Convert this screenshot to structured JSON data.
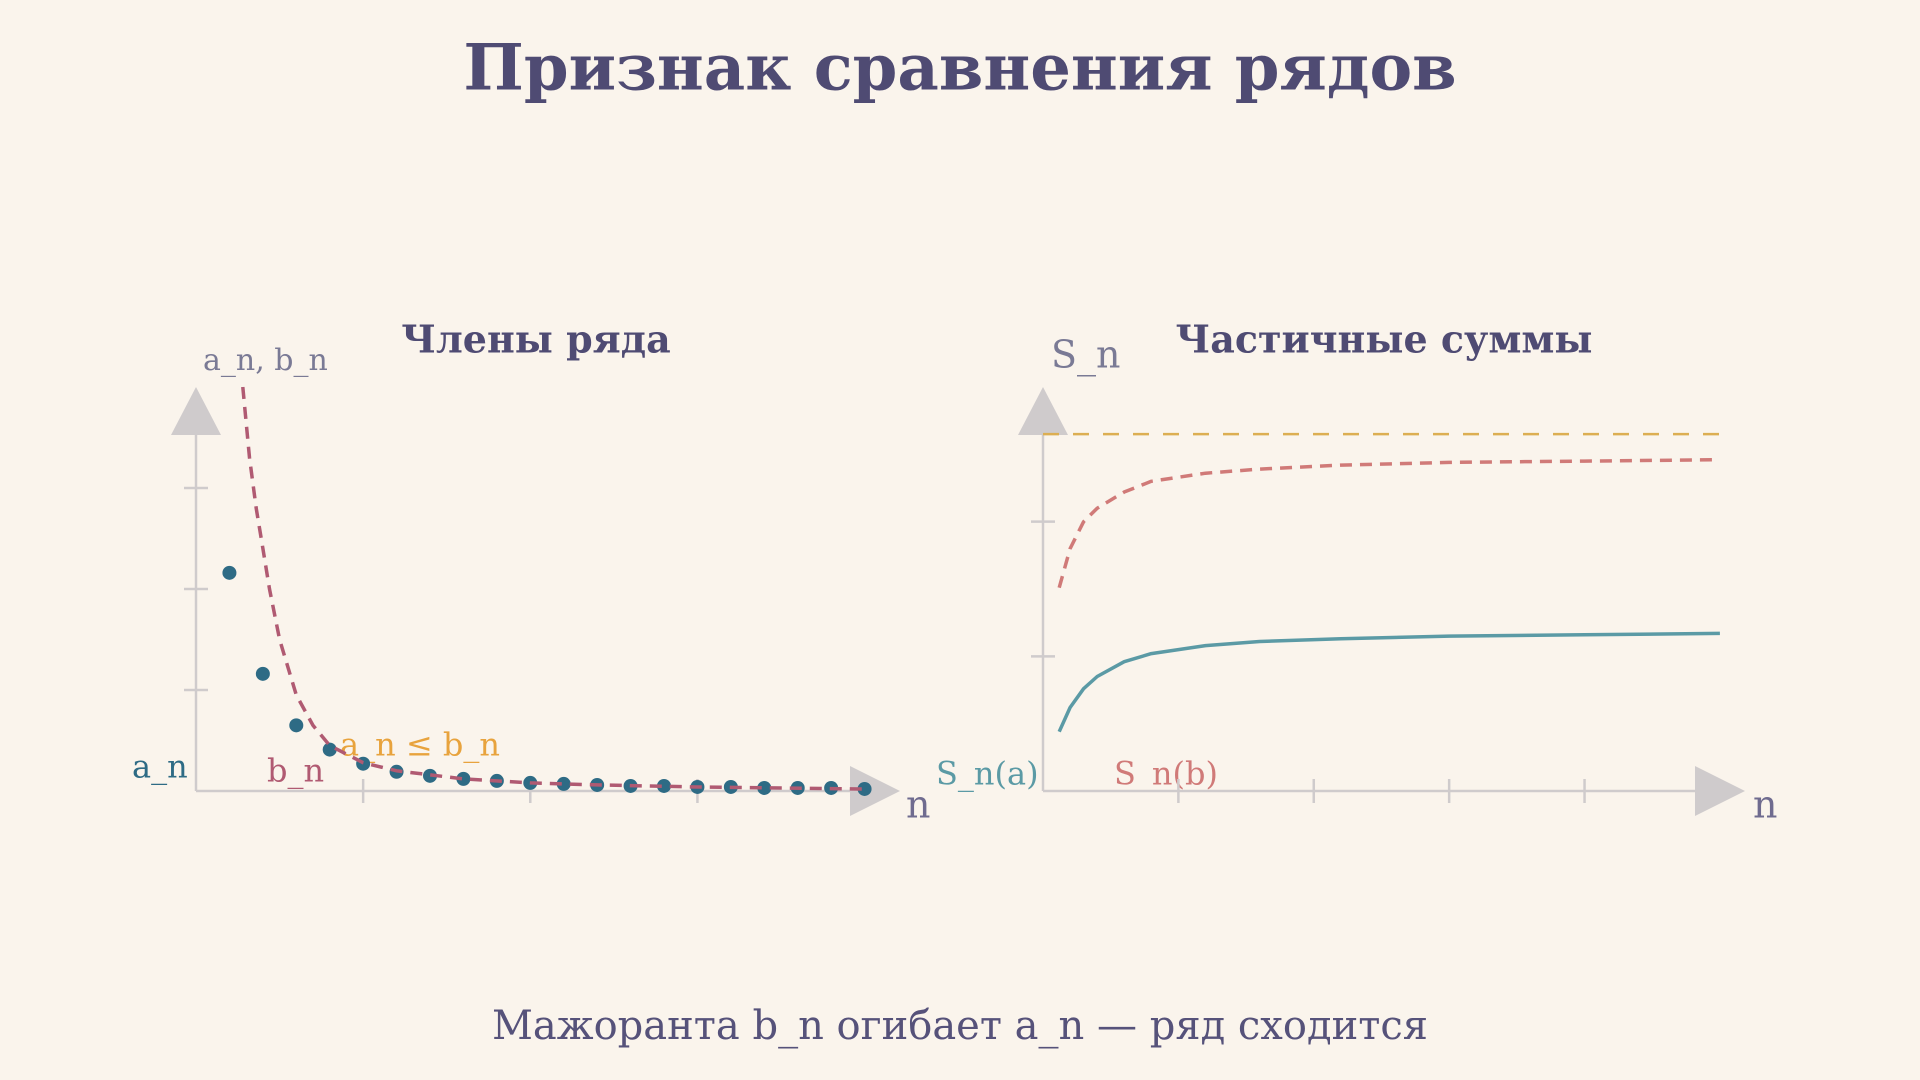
{
  "title": "Признак сравнения рядов",
  "caption": "Мажоранта b_n огибает a_n — ряд сходится",
  "chart_data": [
    {
      "type": "line",
      "title": "Члены ряда",
      "x_label": "n",
      "y_label": "a_n, b_n",
      "annotation": "a_n ≤ b_n",
      "annotation_color": "#e8a33d",
      "xlim": [
        0,
        21
      ],
      "ylim": [
        0,
        4
      ],
      "xticks": [
        5,
        10,
        15
      ],
      "yticks": [
        1,
        2,
        3
      ],
      "series": [
        {
          "name": "a_n",
          "color": "#2e6b85",
          "style": "dots",
          "x": [
            1,
            2,
            3,
            4,
            5,
            6,
            7,
            8,
            9,
            10,
            11,
            12,
            13,
            14,
            15,
            16,
            17,
            18,
            19,
            20
          ],
          "values": [
            2.16,
            1.16,
            0.65,
            0.41,
            0.27,
            0.19,
            0.15,
            0.12,
            0.1,
            0.08,
            0.07,
            0.06,
            0.05,
            0.05,
            0.04,
            0.04,
            0.03,
            0.03,
            0.03,
            0.02
          ]
        },
        {
          "name": "b_n",
          "color": "#b05a72",
          "style": "dashed",
          "x": [
            1.4,
            1.6,
            1.8,
            2,
            2.2,
            2.5,
            3,
            3.5,
            4,
            5,
            6,
            8,
            10,
            12,
            15,
            20
          ],
          "values": [
            4.0,
            3.3,
            2.8,
            2.4,
            2.0,
            1.5,
            0.95,
            0.65,
            0.45,
            0.28,
            0.2,
            0.12,
            0.08,
            0.06,
            0.04,
            0.02
          ]
        }
      ]
    },
    {
      "type": "line",
      "title": "Частичные суммы",
      "x_label": "n",
      "y_label": "S_n",
      "xlim": [
        0,
        26
      ],
      "ylim": [
        0,
        3
      ],
      "xticks": [
        5,
        10,
        15,
        20
      ],
      "yticks": [
        1,
        2
      ],
      "reference_line": {
        "value": 2.65,
        "color": "#dcae52"
      },
      "series": [
        {
          "name": "S_n(a)",
          "color": "#5b9aa5",
          "style": "solid",
          "x": [
            0.6,
            1,
            1.5,
            2,
            3,
            4,
            6,
            8,
            11,
            15,
            20,
            25
          ],
          "values": [
            0.44,
            0.62,
            0.76,
            0.85,
            0.96,
            1.02,
            1.08,
            1.11,
            1.13,
            1.15,
            1.16,
            1.17
          ]
        },
        {
          "name": "S_n(b)",
          "color": "#d07a78",
          "style": "dashed",
          "x": [
            0.6,
            1,
            1.5,
            2,
            3,
            4,
            6,
            8,
            11,
            15,
            20,
            25
          ],
          "values": [
            1.51,
            1.8,
            2.0,
            2.1,
            2.22,
            2.3,
            2.36,
            2.39,
            2.42,
            2.44,
            2.45,
            2.46
          ]
        }
      ]
    }
  ]
}
